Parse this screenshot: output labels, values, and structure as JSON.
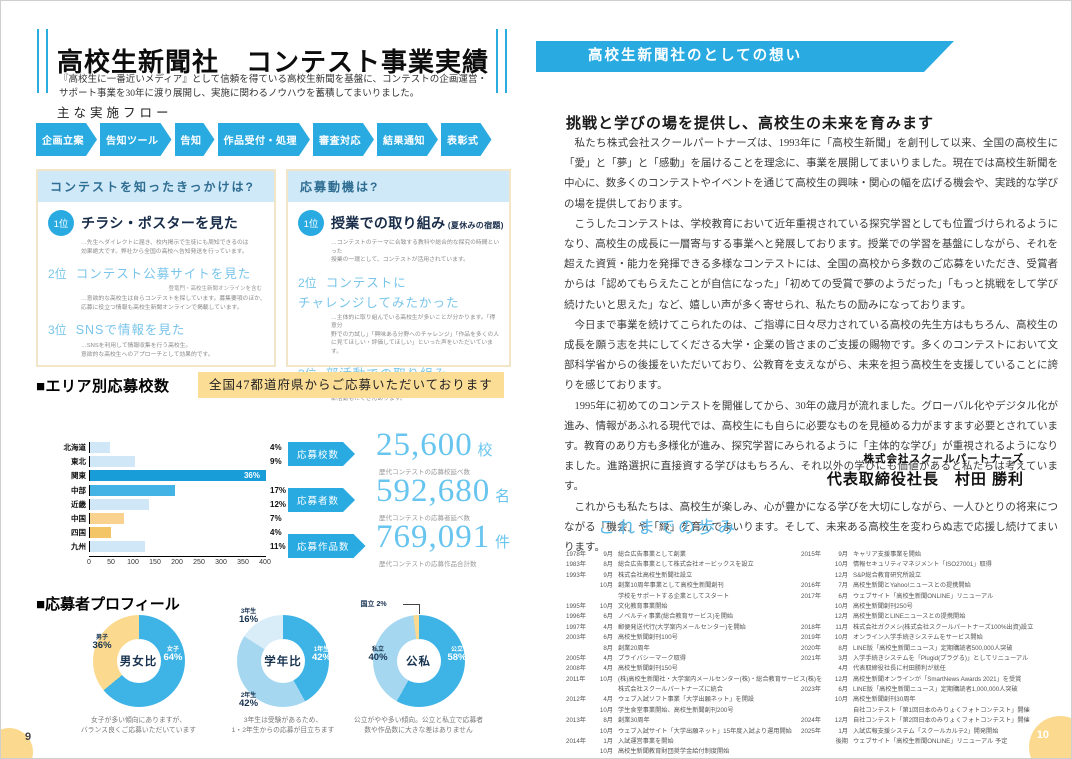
{
  "accent_color": "#29abe2",
  "left_page": {
    "page_number": "9",
    "title": "高校生新聞社　コンテスト事業実績",
    "subtitle": "『高校生に一番近いメディア』として信頼を得ている高校生新聞を基盤に、コンテストの企画運営・サポート事業を30年に渡り展開し、実施に関わるノウハウを蓄積してまいりました。",
    "flow": {
      "label": "主な実施フロー",
      "steps": [
        "企画立案",
        "告知ツール",
        "告知",
        "作品受付・処理",
        "審査対応",
        "結果通知",
        "表彰式"
      ]
    },
    "survey_boxes": [
      {
        "title": "コンテストを知ったきっかけは?",
        "items": [
          {
            "rank": "1位",
            "title": "チラシ・ポスターを見た",
            "note": "…先生へダイレクトに届き、校内掲示で生徒にも周知できるのは\n効果絶大です。弊社から全国の高校へ告知発送を行っています。"
          },
          {
            "rank": "2位",
            "title": "コンテスト公募サイトを見た",
            "sub": "登竜門・高校生新聞オンラインを含む",
            "note": "…意欲的な高校生は自らコンテストを探しています。募集要項のほか、\n応募に役立つ情報も高校生新聞オンラインで掲載しています。"
          },
          {
            "rank": "3位",
            "title": "SNSで情報を見た",
            "note": "…SNSを利用して情報収集を行う高校生。\n意欲的な高校生へのアプローチとして効果的です。"
          }
        ]
      },
      {
        "title": "応募動機は?",
        "items": [
          {
            "rank": "1位",
            "title": "授業での取り組み",
            "suffix": "(夏休みの宿題)",
            "note": "…コンテストのテーマに合致する教科や総合的な探究の時間といった\n授業の一環として、コンテストが活用されています。"
          },
          {
            "rank": "2位",
            "title": "コンテストに",
            "title2": "チャレンジしてみたかった",
            "note": "…主体的に取り組んでいる高校生が多いことが分かります。「得意分\n野での力試し」「興味ある分野へのチャレンジ」「作品を多くの人\nに見てほしい・評価してほしい」といった声をいただいています。"
          },
          {
            "rank": "3位",
            "title": "部活動での取り組み",
            "note": "…毎年、コンテストへの応募・受賞を目標に活動してくれている\n部活動もたくさんあります。"
          }
        ]
      }
    ],
    "area_section": {
      "heading": "■エリア別応募校数",
      "badge": "全国47都道府県からご応募いただいております"
    },
    "stats": [
      {
        "label": "応募校数",
        "value": "25,600",
        "unit": "校",
        "caption": "歴代コンテストの応募校延べ数"
      },
      {
        "label": "応募者数",
        "value": "592,680",
        "unit": "名",
        "caption": "歴代コンテストの応募者延べ数"
      },
      {
        "label": "応募作品数",
        "value": "769,091",
        "unit": "件",
        "caption": "歴代コンテストの応募作品合計数"
      }
    ],
    "profile_section": {
      "heading": "■応募者プロフィール"
    }
  },
  "chart_data": [
    {
      "type": "bar",
      "title": "エリア別応募校数",
      "orientation": "horizontal",
      "categories": [
        "北海道",
        "東北",
        "関東",
        "中部",
        "近畿",
        "中国",
        "四国",
        "九州"
      ],
      "values": [
        45,
        103,
        400,
        193,
        133,
        77,
        48,
        126
      ],
      "labels": [
        "4%",
        "9%",
        "36%",
        "17%",
        "12%",
        "7%",
        "4%",
        "11%"
      ],
      "bar_colors": [
        "#cfe7f7",
        "#cfe7f7",
        "#199dd9",
        "#43b3e5",
        "#cfe7f7",
        "#f8d28e",
        "#f3c566",
        "#cfe7f7"
      ],
      "xlim": [
        0,
        400
      ],
      "xticks": [
        0,
        50,
        100,
        150,
        200,
        250,
        300,
        350,
        400
      ],
      "grid": false
    },
    {
      "type": "pie",
      "title": "男女比",
      "segments": [
        {
          "label": "女子",
          "value": 64,
          "color": "#3eb3e6"
        },
        {
          "label": "男子",
          "value": 36,
          "color": "#fbd98f"
        }
      ],
      "caption": "女子が多い傾向にありますが、\nバランス良くご応募いただいています"
    },
    {
      "type": "pie",
      "title": "学年比",
      "segments": [
        {
          "label": "1年生",
          "value": 42,
          "color": "#3eb3e6"
        },
        {
          "label": "2年生",
          "value": 42,
          "color": "#a6d7f1"
        },
        {
          "label": "3年生",
          "value": 16,
          "color": "#d9edf9"
        }
      ],
      "caption": "3年生は受験があるため、\n1・2年生からの応募が目立ちます"
    },
    {
      "type": "pie",
      "title": "公私",
      "segments": [
        {
          "label": "公立",
          "value": 58,
          "color": "#3eb3e6"
        },
        {
          "label": "私立",
          "value": 40,
          "color": "#a6d7f1"
        },
        {
          "label": "国立",
          "value": 2,
          "color": "#fbd98f"
        }
      ],
      "caption": "公立がやや多い傾向。公立と私立で応募者\n数や作品数に大きな差はありません"
    }
  ],
  "right_page": {
    "page_number": "10",
    "banner": "高校生新聞社のとしての想い",
    "heading": "挑戦と学びの場を提供し、高校生の未来を育みます",
    "paragraphs": [
      "私たち株式会社スクールパートナーズは、1993年に「高校生新聞」を創刊して以来、全国の高校生に「愛」と「夢」と「感動」を届けることを理念に、事業を展開してまいりました。現在では高校生新聞を中心に、数多くのコンテストやイベントを通じて高校生の興味・関心の幅を広げる機会や、実践的な学びの場を提供しております。",
      "こうしたコンテストは、学校教育において近年重視されている探究学習としても位置づけられるようになり、高校生の成長に一層寄与する事業へと発展しております。授業での学習を基盤にしながら、それを超えた資質・能力を発揮できる多様なコンテストには、全国の高校から多数のご応募をいただき、受賞者からは「認めてもらえたことが自信になった」「初めての受賞で夢のようだった」「もっと挑戦をして学び続けたいと思えた」など、嬉しい声が多く寄せられ、私たちの励みになっております。",
      "今日まで事業を続けてこられたのは、ご指導に日々尽力されている高校の先生方はもちろん、高校生の成長を願う志を共にしてくださる大学・企業の皆さまのご支援の賜物です。多くのコンテストにおいて文部科学省からの後援をいただいており、公教育を支えながら、未来を担う高校生を支援していることに誇りを感じております。",
      "1995年に初めてのコンテストを開催してから、30年の歳月が流れました。グローバル化やデジタル化が進み、情報があふれる現代では、高校生にも自らに必要なものを見極める力がますます必要とされています。教育のあり方も多様化が進み、探究学習にみられるように「主体的な学び」が重視されるようになりました。進路選択に直接資する学びはもちろん、それ以外の学びにも価値があると私たちは考えています。",
      "これからも私たちは、高校生が楽しみ、心が豊かになる学びを大切にしながら、一人ひとりの将来につながる「機会」や「縁」を育んでまいります。そして、未来ある高校生を変わらぬ志で応援し続けてまいります。"
    ],
    "signature": {
      "company": "株式会社スクールパートナーズ",
      "name": "代表取締役社長　村田 勝利"
    },
    "history": {
      "title": "これまでの歩み",
      "left": [
        {
          "year": "1978年",
          "month": "9月",
          "text": "総合広告事業として創業"
        },
        {
          "year": "1983年",
          "month": "8月",
          "text": "総合広告事業として株式会社オービックスを設立"
        },
        {
          "year": "1993年",
          "month": "9月",
          "text": "株式会社高校生新聞社設立"
        },
        {
          "year": "",
          "month": "10月",
          "text": "創業10周年事業として高校生新聞創刊"
        },
        {
          "year": "",
          "month": "",
          "text": "学校をサポートする企業としてスタート"
        },
        {
          "year": "1995年",
          "month": "10月",
          "text": "文化教育事業開始"
        },
        {
          "year": "1996年",
          "month": "6月",
          "text": "ノベルティ事業(総合教育サービス)を開始"
        },
        {
          "year": "1997年",
          "month": "4月",
          "text": "郵便発送代行(大学案内メールセンター)を開始"
        },
        {
          "year": "2003年",
          "month": "6月",
          "text": "高校生新聞創刊100号"
        },
        {
          "year": "",
          "month": "8月",
          "text": "創業20周年"
        },
        {
          "year": "2005年",
          "month": "4月",
          "text": "プライバシーマーク取得"
        },
        {
          "year": "2008年",
          "month": "4月",
          "text": "高校生新聞創刊150号"
        },
        {
          "year": "2011年",
          "month": "10月",
          "text": "(株)高校生新聞社・大学案内メールセンター(株)・総合教育サービス(株)を"
        },
        {
          "year": "",
          "month": "",
          "text": "株式会社スクールパートナーズに統合"
        },
        {
          "year": "2012年",
          "month": "4月",
          "text": "ウェブ入試ソフト事業「大学出願ネット」を開設"
        },
        {
          "year": "",
          "month": "10月",
          "text": "学生食堂事業開始、高校生新聞創刊200号"
        },
        {
          "year": "2013年",
          "month": "8月",
          "text": "創業30周年"
        },
        {
          "year": "",
          "month": "10月",
          "text": "ウェブ入試サイト「大学出願ネット」15年度入試より運用開始"
        },
        {
          "year": "2014年",
          "month": "1月",
          "text": "入試運営事業を開始"
        },
        {
          "year": "",
          "month": "10月",
          "text": "高校生新聞教育財団奨学金給付制度開始"
        }
      ],
      "right": [
        {
          "year": "2015年",
          "month": "9月",
          "text": "キャリア支援事業を開始"
        },
        {
          "year": "",
          "month": "10月",
          "text": "情報セキュリティマネジメント「ISO27001」取得"
        },
        {
          "year": "",
          "month": "12月",
          "text": "S&P総合教育研究所設立"
        },
        {
          "year": "2016年",
          "month": "7月",
          "text": "高校生新聞とYahoo!ニュースとの提携開始"
        },
        {
          "year": "2017年",
          "month": "6月",
          "text": "ウェブサイト「高校生新聞ONLINE」リニューアル"
        },
        {
          "year": "",
          "month": "10月",
          "text": "高校生新聞創刊250号"
        },
        {
          "year": "",
          "month": "12月",
          "text": "高校生新聞とLINEニュースとの提携開始"
        },
        {
          "year": "2018年",
          "month": "11月",
          "text": "株式会社ガクメシ(株式会社スクールパートナーズ100%出資)設立"
        },
        {
          "year": "2019年",
          "month": "10月",
          "text": "オンライン入学手続きシステムをサービス開始"
        },
        {
          "year": "2020年",
          "month": "8月",
          "text": "LINE版「高校生新聞ニュース」定期購読者500,000人突破"
        },
        {
          "year": "2021年",
          "month": "3月",
          "text": "入学手続きシステムを「Plugid(プラグる)」としてリニューアル"
        },
        {
          "year": "",
          "month": "4月",
          "text": "代表取締役社長に村田勝利が就任"
        },
        {
          "year": "",
          "month": "12月",
          "text": "高校生新聞オンラインが「SmartNews Awards 2021」を受賞"
        },
        {
          "year": "2023年",
          "month": "6月",
          "text": "LINE版「高校生新聞ニュース」定期購読者1,000,000人突破"
        },
        {
          "year": "",
          "month": "10月",
          "text": "高校生新聞創刊30周年"
        },
        {
          "year": "",
          "month": "",
          "text": "自社コンテスト「第1回日本のみりょくフォトコンテスト」開催"
        },
        {
          "year": "2024年",
          "month": "12月",
          "text": "自社コンテスト「第2回日本のみりょくフォトコンテスト」開催"
        },
        {
          "year": "2025年",
          "month": "1月",
          "text": "入試広報支援システム「スクールカルテ2」開発開始"
        },
        {
          "year": "",
          "month": "後期",
          "text": "ウェブサイト「高校生新聞ONLINE」リニューアル 予定"
        }
      ]
    }
  }
}
